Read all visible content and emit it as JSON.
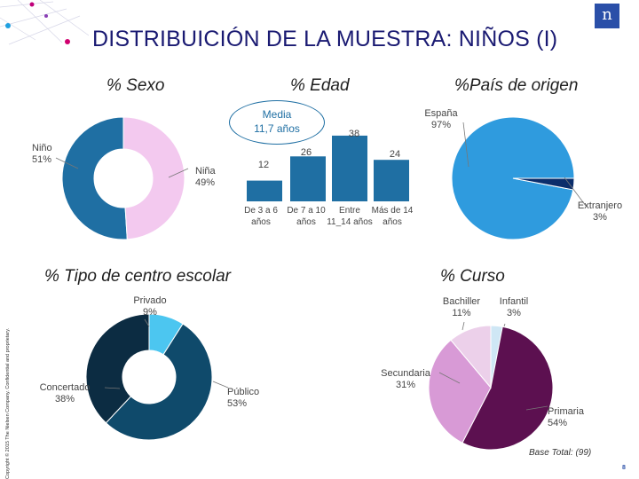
{
  "slide": {
    "title": "DISTRIBUICIÓN DE LA MUESTRA: NIÑOS (I)",
    "base_note": "Base Total: (99)",
    "page_number": "8",
    "copyright": "Copyright © 2015 The Nielsen Company. Confidential and proprietary.",
    "logo_text": "n"
  },
  "colors": {
    "title": "#1a1a72",
    "nino": "#1f6fa3",
    "nina": "#f3c9ef",
    "bar": "#1f6fa3",
    "espana": "#2f9bde",
    "extranjero": "#0b2d6b",
    "publico": "#0f4a6b",
    "concertado": "#0c2c42",
    "privado": "#4cc6f0",
    "primaria": "#5c1050",
    "secundaria": "#d89ad6",
    "bachiller": "#ecd0ea",
    "infantil": "#cfe7f5"
  },
  "chart_data": [
    {
      "type": "pie",
      "donut": true,
      "title": "% Sexo",
      "slices": [
        {
          "label": "Niño",
          "value": 51,
          "display": "51%"
        },
        {
          "label": "Niña",
          "value": 49,
          "display": "49%"
        }
      ]
    },
    {
      "type": "bar",
      "title": "% Edad",
      "annotation": {
        "line1": "Media",
        "line2": "11,7 años"
      },
      "categories": [
        {
          "line1": "De 3 a 6",
          "line2": "años"
        },
        {
          "line1": "De 7 a 10",
          "line2": "años"
        },
        {
          "line1": "Entre",
          "line2": "11_14 años"
        },
        {
          "line1": "Más de 14",
          "line2": "años"
        }
      ],
      "values": [
        12,
        26,
        38,
        24
      ],
      "ylim": [
        0,
        40
      ]
    },
    {
      "type": "pie",
      "donut": true,
      "title": "%País de origen",
      "slices": [
        {
          "label": "España",
          "value": 97,
          "display": "97%"
        },
        {
          "label": "Extranjero",
          "value": 3,
          "display": "3%"
        }
      ]
    },
    {
      "type": "pie",
      "donut": true,
      "title": "% Tipo de centro escolar",
      "slices": [
        {
          "label": "Privado",
          "value": 9,
          "display": "9%"
        },
        {
          "label": "Público",
          "value": 53,
          "display": "53%"
        },
        {
          "label": "Concertado",
          "value": 38,
          "display": "38%"
        }
      ]
    },
    {
      "type": "pie",
      "donut": true,
      "title": "% Curso",
      "slices": [
        {
          "label": "Infantil",
          "value": 3,
          "display": "3%"
        },
        {
          "label": "Primaria",
          "value": 54,
          "display": "54%"
        },
        {
          "label": "Secundaria",
          "value": 31,
          "display": "31%"
        },
        {
          "label": "Bachiller",
          "value": 11,
          "display": "11%"
        }
      ]
    }
  ]
}
